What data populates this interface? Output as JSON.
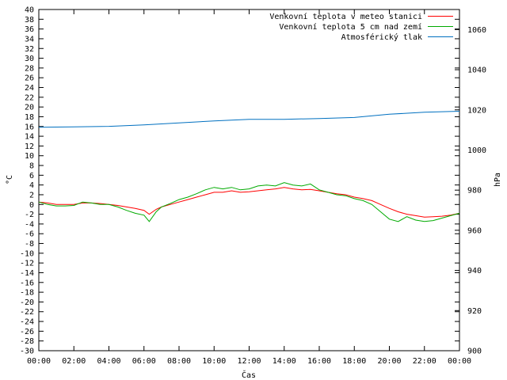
{
  "chart_data": {
    "type": "line",
    "title": "",
    "xlabel": "Čas",
    "ylabel_left": "°C",
    "ylabel_right": "hPa",
    "grid": false,
    "legend_position": "top-right",
    "x_ticks": [
      "00:00",
      "02:00",
      "04:00",
      "06:00",
      "08:00",
      "10:00",
      "12:00",
      "14:00",
      "16:00",
      "18:00",
      "20:00",
      "22:00",
      "00:00"
    ],
    "xlim": [
      0,
      24
    ],
    "ylim_left": [
      -30,
      40
    ],
    "ylim_right": [
      900,
      1070
    ],
    "y_ticks_left": [
      -30,
      -28,
      -26,
      -24,
      -22,
      -20,
      -18,
      -16,
      -14,
      -12,
      -10,
      -8,
      -6,
      -4,
      -2,
      0,
      2,
      4,
      6,
      8,
      10,
      12,
      14,
      16,
      18,
      20,
      22,
      24,
      26,
      28,
      30,
      32,
      34,
      36,
      38,
      40
    ],
    "y_ticks_right": [
      900,
      920,
      940,
      960,
      980,
      1000,
      1020,
      1040,
      1060
    ],
    "series": [
      {
        "name": "Venkovní teplota v meteo stanici",
        "color": "#ff0000",
        "axis": "left",
        "x": [
          0,
          0.5,
          1,
          1.5,
          2,
          2.5,
          3,
          3.5,
          4,
          4.5,
          5,
          5.5,
          6,
          6.3,
          6.7,
          7,
          7.5,
          8,
          8.5,
          9,
          9.5,
          10,
          10.5,
          11,
          11.5,
          12,
          12.5,
          13,
          13.5,
          14,
          14.5,
          15,
          15.5,
          16,
          16.5,
          17,
          17.5,
          18,
          18.5,
          19,
          19.5,
          20,
          20.5,
          21,
          21.5,
          22,
          22.5,
          23,
          23.5,
          24
        ],
        "values": [
          0.5,
          0.3,
          0,
          0,
          0,
          0.3,
          0.3,
          0.2,
          0,
          -0.2,
          -0.5,
          -0.8,
          -1.2,
          -2,
          -1,
          -0.5,
          0,
          0.5,
          1,
          1.5,
          2,
          2.5,
          2.5,
          2.8,
          2.5,
          2.6,
          2.8,
          3,
          3.2,
          3.5,
          3.2,
          3,
          3.1,
          2.8,
          2.5,
          2.2,
          2,
          1.5,
          1.2,
          0.8,
          0,
          -0.8,
          -1.5,
          -2,
          -2.3,
          -2.6,
          -2.5,
          -2.4,
          -2.2,
          -1.8
        ]
      },
      {
        "name": "Venkovní teplota 5 cm nad zemí",
        "color": "#00aa00",
        "axis": "left",
        "x": [
          0,
          0.5,
          1,
          1.5,
          2,
          2.5,
          3,
          3.5,
          4,
          4.5,
          5,
          5.5,
          6,
          6.3,
          6.7,
          7,
          7.5,
          8,
          8.5,
          9,
          9.5,
          10,
          10.5,
          11,
          11.5,
          12,
          12.5,
          13,
          13.5,
          14,
          14.5,
          15,
          15.5,
          16,
          16.5,
          17,
          17.5,
          18,
          18.5,
          19,
          19.5,
          20,
          20.5,
          21,
          21.5,
          22,
          22.5,
          23,
          23.5,
          24
        ],
        "values": [
          0.5,
          0,
          -0.3,
          -0.3,
          -0.2,
          0.5,
          0.3,
          0,
          0,
          -0.5,
          -1.2,
          -1.8,
          -2.2,
          -3.5,
          -1.5,
          -0.5,
          0.2,
          1,
          1.5,
          2.2,
          3,
          3.5,
          3.2,
          3.5,
          3,
          3.2,
          3.8,
          4,
          3.8,
          4.5,
          4,
          3.8,
          4.2,
          3,
          2.5,
          2,
          1.8,
          1.2,
          0.8,
          0,
          -1.5,
          -3,
          -3.5,
          -2.5,
          -3.2,
          -3.5,
          -3.3,
          -2.8,
          -2.3,
          -1.8
        ]
      },
      {
        "name": "Atmosférický tlak",
        "color": "#0070c0",
        "axis": "right",
        "x": [
          0,
          2,
          4,
          6,
          8,
          10,
          12,
          14,
          16,
          18,
          20,
          22,
          24
        ],
        "values": [
          1011.3,
          1011.5,
          1011.8,
          1012.5,
          1013.5,
          1014.5,
          1015.3,
          1015.3,
          1015.7,
          1016.2,
          1017.8,
          1018.8,
          1019.3
        ]
      }
    ]
  }
}
